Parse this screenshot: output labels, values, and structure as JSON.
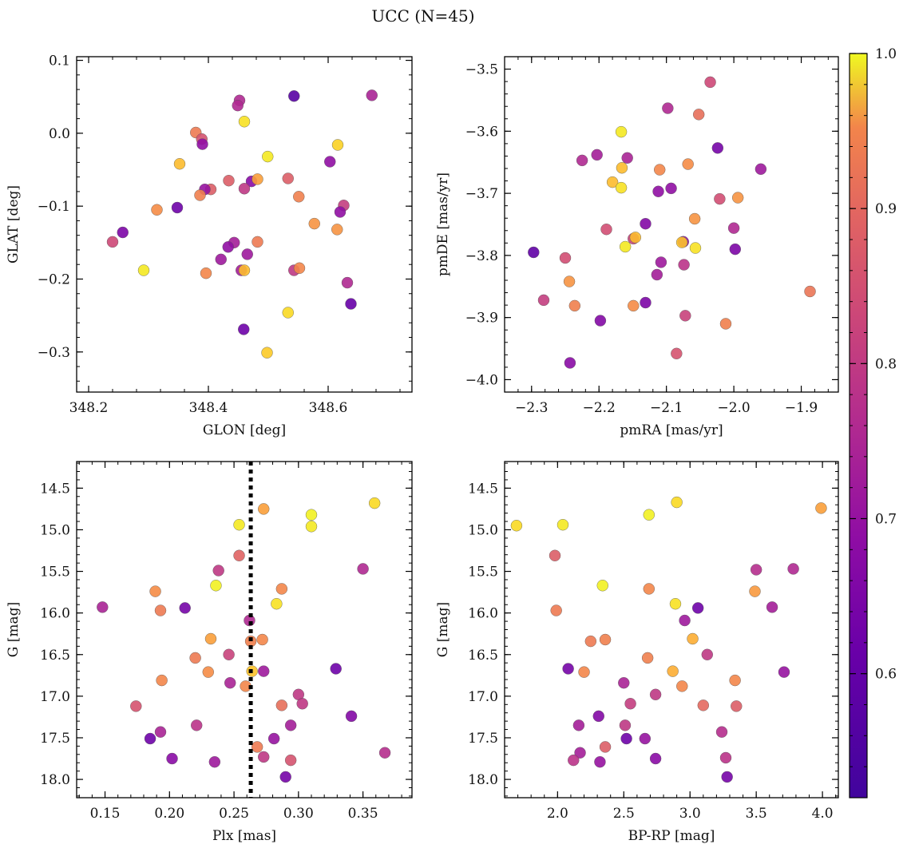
{
  "title": "UCC (N=45)",
  "colorbar": {
    "range": [
      0.52,
      1.0
    ],
    "ticks": [
      0.6,
      0.7,
      0.8,
      0.9,
      1.0
    ],
    "tick_labels": [
      "0.6",
      "0.7",
      "0.8",
      "0.9",
      "1.0"
    ],
    "colormap": "plasma"
  },
  "chart_data": [
    {
      "type": "scatter",
      "xlabel": "GLON [deg]",
      "ylabel": "GLAT [deg]",
      "xlim": [
        348.18,
        348.74
      ],
      "ylim": [
        -0.355,
        0.105
      ],
      "xticks": [
        348.2,
        348.4,
        348.6
      ],
      "xtick_labels": [
        "348.2",
        "348.4",
        "348.6"
      ],
      "yticks": [
        0.1,
        0.0,
        -0.1,
        -0.2,
        -0.3
      ],
      "ytick_labels": [
        "0.1",
        "0.0",
        "−0.1",
        "−0.2",
        "−0.3"
      ],
      "points": [
        {
          "x": 348.543,
          "y": 0.051,
          "c": 0.54
        },
        {
          "x": 348.673,
          "y": 0.052,
          "c": 0.66
        },
        {
          "x": 348.452,
          "y": 0.045,
          "c": 0.67
        },
        {
          "x": 348.449,
          "y": 0.038,
          "c": 0.67
        },
        {
          "x": 348.46,
          "y": 0.016,
          "c": 0.97
        },
        {
          "x": 348.379,
          "y": 0.001,
          "c": 0.82
        },
        {
          "x": 348.389,
          "y": -0.008,
          "c": 0.75
        },
        {
          "x": 348.39,
          "y": -0.015,
          "c": 0.62
        },
        {
          "x": 348.616,
          "y": -0.016,
          "c": 0.95
        },
        {
          "x": 348.499,
          "y": -0.032,
          "c": 0.98
        },
        {
          "x": 348.352,
          "y": -0.042,
          "c": 0.92
        },
        {
          "x": 348.603,
          "y": -0.039,
          "c": 0.62
        },
        {
          "x": 348.533,
          "y": -0.062,
          "c": 0.77
        },
        {
          "x": 348.434,
          "y": -0.065,
          "c": 0.77
        },
        {
          "x": 348.472,
          "y": -0.066,
          "c": 0.61
        },
        {
          "x": 348.482,
          "y": -0.063,
          "c": 0.88
        },
        {
          "x": 348.404,
          "y": -0.077,
          "c": 0.77
        },
        {
          "x": 348.394,
          "y": -0.077,
          "c": 0.63
        },
        {
          "x": 348.46,
          "y": -0.076,
          "c": 0.7
        },
        {
          "x": 348.386,
          "y": -0.085,
          "c": 0.83
        },
        {
          "x": 348.551,
          "y": -0.087,
          "c": 0.83
        },
        {
          "x": 348.626,
          "y": -0.099,
          "c": 0.71
        },
        {
          "x": 348.62,
          "y": -0.108,
          "c": 0.62
        },
        {
          "x": 348.348,
          "y": -0.102,
          "c": 0.57
        },
        {
          "x": 348.314,
          "y": -0.105,
          "c": 0.85
        },
        {
          "x": 348.577,
          "y": -0.124,
          "c": 0.86
        },
        {
          "x": 348.615,
          "y": -0.132,
          "c": 0.86
        },
        {
          "x": 348.257,
          "y": -0.136,
          "c": 0.59
        },
        {
          "x": 348.24,
          "y": -0.149,
          "c": 0.73
        },
        {
          "x": 348.443,
          "y": -0.15,
          "c": 0.65
        },
        {
          "x": 348.482,
          "y": -0.149,
          "c": 0.82
        },
        {
          "x": 348.433,
          "y": -0.156,
          "c": 0.62
        },
        {
          "x": 348.465,
          "y": -0.166,
          "c": 0.64
        },
        {
          "x": 348.421,
          "y": -0.173,
          "c": 0.64
        },
        {
          "x": 348.292,
          "y": -0.188,
          "c": 0.98
        },
        {
          "x": 348.455,
          "y": -0.188,
          "c": 0.65
        },
        {
          "x": 348.46,
          "y": -0.188,
          "c": 0.92
        },
        {
          "x": 348.396,
          "y": -0.192,
          "c": 0.84
        },
        {
          "x": 348.543,
          "y": -0.188,
          "c": 0.7
        },
        {
          "x": 348.552,
          "y": -0.185,
          "c": 0.84
        },
        {
          "x": 348.632,
          "y": -0.205,
          "c": 0.67
        },
        {
          "x": 348.638,
          "y": -0.234,
          "c": 0.56
        },
        {
          "x": 348.533,
          "y": -0.246,
          "c": 0.96
        },
        {
          "x": 348.459,
          "y": -0.269,
          "c": 0.57
        },
        {
          "x": 348.498,
          "y": -0.301,
          "c": 0.94
        }
      ]
    },
    {
      "type": "scatter",
      "xlabel": "pmRA [mas/yr]",
      "ylabel": "pmDE [mas/yr]",
      "xlim": [
        -2.34,
        -1.845
      ],
      "ylim": [
        -4.02,
        -3.48
      ],
      "xticks": [
        -2.3,
        -2.2,
        -2.1,
        -2.0,
        -1.9
      ],
      "xtick_labels": [
        "−2.3",
        "−2.2",
        "−2.1",
        "−2.0",
        "−1.9"
      ],
      "yticks": [
        -3.5,
        -3.6,
        -3.7,
        -3.8,
        -3.9,
        -4.0
      ],
      "ytick_labels": [
        "−3.5",
        "−3.6",
        "−3.7",
        "−3.8",
        "−3.9",
        "−4.0"
      ],
      "points": [
        {
          "x": -2.035,
          "y": -3.521,
          "c": 0.73
        },
        {
          "x": -2.098,
          "y": -3.563,
          "c": 0.67
        },
        {
          "x": -2.052,
          "y": -3.573,
          "c": 0.8
        },
        {
          "x": -2.167,
          "y": -3.601,
          "c": 0.98
        },
        {
          "x": -2.024,
          "y": -3.627,
          "c": 0.58
        },
        {
          "x": -2.203,
          "y": -3.638,
          "c": 0.65
        },
        {
          "x": -2.158,
          "y": -3.643,
          "c": 0.66
        },
        {
          "x": -2.225,
          "y": -3.647,
          "c": 0.67
        },
        {
          "x": -2.166,
          "y": -3.659,
          "c": 0.92
        },
        {
          "x": -2.068,
          "y": -3.653,
          "c": 0.85
        },
        {
          "x": -1.96,
          "y": -3.661,
          "c": 0.64
        },
        {
          "x": -2.11,
          "y": -3.662,
          "c": 0.84
        },
        {
          "x": -2.18,
          "y": -3.682,
          "c": 0.92
        },
        {
          "x": -2.167,
          "y": -3.691,
          "c": 0.97
        },
        {
          "x": -2.112,
          "y": -3.697,
          "c": 0.62
        },
        {
          "x": -2.093,
          "y": -3.692,
          "c": 0.62
        },
        {
          "x": -2.021,
          "y": -3.709,
          "c": 0.74
        },
        {
          "x": -1.994,
          "y": -3.707,
          "c": 0.86
        },
        {
          "x": -2.058,
          "y": -3.741,
          "c": 0.86
        },
        {
          "x": -2.131,
          "y": -3.749,
          "c": 0.6
        },
        {
          "x": -2.189,
          "y": -3.758,
          "c": 0.74
        },
        {
          "x": -2.0,
          "y": -3.756,
          "c": 0.67
        },
        {
          "x": -2.149,
          "y": -3.773,
          "c": 0.72
        },
        {
          "x": -2.146,
          "y": -3.771,
          "c": 0.92
        },
        {
          "x": -2.075,
          "y": -3.778,
          "c": 0.62
        },
        {
          "x": -2.077,
          "y": -3.779,
          "c": 0.93
        },
        {
          "x": -2.161,
          "y": -3.786,
          "c": 0.98
        },
        {
          "x": -2.057,
          "y": -3.788,
          "c": 0.97
        },
        {
          "x": -1.998,
          "y": -3.79,
          "c": 0.59
        },
        {
          "x": -2.297,
          "y": -3.795,
          "c": 0.55
        },
        {
          "x": -2.25,
          "y": -3.804,
          "c": 0.74
        },
        {
          "x": -2.108,
          "y": -3.811,
          "c": 0.64
        },
        {
          "x": -2.074,
          "y": -3.815,
          "c": 0.69
        },
        {
          "x": -2.114,
          "y": -3.831,
          "c": 0.65
        },
        {
          "x": -2.244,
          "y": -3.842,
          "c": 0.86
        },
        {
          "x": -1.887,
          "y": -3.858,
          "c": 0.81
        },
        {
          "x": -2.282,
          "y": -3.872,
          "c": 0.71
        },
        {
          "x": -2.131,
          "y": -3.876,
          "c": 0.59
        },
        {
          "x": -2.236,
          "y": -3.881,
          "c": 0.83
        },
        {
          "x": -2.149,
          "y": -3.881,
          "c": 0.85
        },
        {
          "x": -2.072,
          "y": -3.897,
          "c": 0.72
        },
        {
          "x": -2.198,
          "y": -3.905,
          "c": 0.6
        },
        {
          "x": -2.012,
          "y": -3.91,
          "c": 0.83
        },
        {
          "x": -2.085,
          "y": -3.958,
          "c": 0.75
        },
        {
          "x": -2.243,
          "y": -3.973,
          "c": 0.61
        }
      ]
    },
    {
      "type": "scatter",
      "xlabel": "Plx [mas]",
      "ylabel": "G [mag]",
      "xlim": [
        0.128,
        0.388
      ],
      "ylim": [
        18.22,
        14.18
      ],
      "xticks": [
        0.15,
        0.2,
        0.25,
        0.3,
        0.35
      ],
      "xtick_labels": [
        "0.15",
        "0.20",
        "0.25",
        "0.30",
        "0.35"
      ],
      "yticks": [
        14.5,
        15.0,
        15.5,
        16.0,
        16.5,
        17.0,
        17.5,
        18.0
      ],
      "ytick_labels": [
        "14.5",
        "15.0",
        "15.5",
        "16.0",
        "16.5",
        "17.0",
        "17.5",
        "18.0"
      ],
      "vline": 0.263,
      "points": [
        {
          "x": 0.359,
          "y": 14.68,
          "c": 0.96
        },
        {
          "x": 0.273,
          "y": 14.75,
          "c": 0.88
        },
        {
          "x": 0.31,
          "y": 14.82,
          "c": 0.99
        },
        {
          "x": 0.31,
          "y": 14.96,
          "c": 0.98
        },
        {
          "x": 0.254,
          "y": 14.94,
          "c": 0.98
        },
        {
          "x": 0.254,
          "y": 15.31,
          "c": 0.78
        },
        {
          "x": 0.35,
          "y": 15.47,
          "c": 0.67
        },
        {
          "x": 0.238,
          "y": 15.49,
          "c": 0.7
        },
        {
          "x": 0.236,
          "y": 15.67,
          "c": 0.99
        },
        {
          "x": 0.287,
          "y": 15.71,
          "c": 0.84
        },
        {
          "x": 0.189,
          "y": 15.74,
          "c": 0.85
        },
        {
          "x": 0.283,
          "y": 15.89,
          "c": 0.97
        },
        {
          "x": 0.148,
          "y": 15.93,
          "c": 0.66
        },
        {
          "x": 0.212,
          "y": 15.94,
          "c": 0.58
        },
        {
          "x": 0.193,
          "y": 15.97,
          "c": 0.82
        },
        {
          "x": 0.262,
          "y": 16.09,
          "c": 0.67
        },
        {
          "x": 0.232,
          "y": 16.31,
          "c": 0.88
        },
        {
          "x": 0.272,
          "y": 16.32,
          "c": 0.84
        },
        {
          "x": 0.263,
          "y": 16.34,
          "c": 0.83
        },
        {
          "x": 0.246,
          "y": 16.5,
          "c": 0.72
        },
        {
          "x": 0.22,
          "y": 16.54,
          "c": 0.82
        },
        {
          "x": 0.329,
          "y": 16.67,
          "c": 0.57
        },
        {
          "x": 0.273,
          "y": 16.7,
          "c": 0.64
        },
        {
          "x": 0.264,
          "y": 16.7,
          "c": 0.93
        },
        {
          "x": 0.23,
          "y": 16.71,
          "c": 0.85
        },
        {
          "x": 0.194,
          "y": 16.81,
          "c": 0.84
        },
        {
          "x": 0.247,
          "y": 16.84,
          "c": 0.66
        },
        {
          "x": 0.259,
          "y": 16.88,
          "c": 0.84
        },
        {
          "x": 0.3,
          "y": 16.98,
          "c": 0.7
        },
        {
          "x": 0.174,
          "y": 17.12,
          "c": 0.75
        },
        {
          "x": 0.287,
          "y": 17.11,
          "c": 0.8
        },
        {
          "x": 0.303,
          "y": 17.09,
          "c": 0.7
        },
        {
          "x": 0.341,
          "y": 17.24,
          "c": 0.6
        },
        {
          "x": 0.221,
          "y": 17.35,
          "c": 0.69
        },
        {
          "x": 0.294,
          "y": 17.35,
          "c": 0.65
        },
        {
          "x": 0.193,
          "y": 17.43,
          "c": 0.66
        },
        {
          "x": 0.185,
          "y": 17.51,
          "c": 0.57
        },
        {
          "x": 0.281,
          "y": 17.51,
          "c": 0.63
        },
        {
          "x": 0.268,
          "y": 17.61,
          "c": 0.82
        },
        {
          "x": 0.367,
          "y": 17.68,
          "c": 0.68
        },
        {
          "x": 0.202,
          "y": 17.75,
          "c": 0.61
        },
        {
          "x": 0.273,
          "y": 17.73,
          "c": 0.7
        },
        {
          "x": 0.294,
          "y": 17.77,
          "c": 0.75
        },
        {
          "x": 0.235,
          "y": 17.79,
          "c": 0.64
        },
        {
          "x": 0.29,
          "y": 17.97,
          "c": 0.58
        }
      ]
    },
    {
      "type": "scatter",
      "xlabel": "BP-RP [mag]",
      "ylabel": "G [mag]",
      "xlim": [
        1.6,
        4.12
      ],
      "ylim": [
        18.22,
        14.18
      ],
      "xticks": [
        2.0,
        2.5,
        3.0,
        3.5,
        4.0
      ],
      "xtick_labels": [
        "2.0",
        "2.5",
        "3.0",
        "3.5",
        "4.0"
      ],
      "yticks": [
        14.5,
        15.0,
        15.5,
        16.0,
        16.5,
        17.0,
        17.5,
        18.0
      ],
      "ytick_labels": [
        "14.5",
        "15.0",
        "15.5",
        "16.0",
        "16.5",
        "17.0",
        "17.5",
        "18.0"
      ],
      "points": [
        {
          "x": 3.99,
          "y": 14.74,
          "c": 0.88
        },
        {
          "x": 2.9,
          "y": 14.67,
          "c": 0.96
        },
        {
          "x": 2.69,
          "y": 14.82,
          "c": 0.99
        },
        {
          "x": 1.69,
          "y": 14.95,
          "c": 0.96
        },
        {
          "x": 2.04,
          "y": 14.94,
          "c": 0.98
        },
        {
          "x": 1.98,
          "y": 15.31,
          "c": 0.77
        },
        {
          "x": 3.5,
          "y": 15.48,
          "c": 0.68
        },
        {
          "x": 3.78,
          "y": 15.47,
          "c": 0.67
        },
        {
          "x": 2.34,
          "y": 15.67,
          "c": 0.99
        },
        {
          "x": 2.69,
          "y": 15.71,
          "c": 0.84
        },
        {
          "x": 3.49,
          "y": 15.74,
          "c": 0.87
        },
        {
          "x": 2.89,
          "y": 15.89,
          "c": 0.97
        },
        {
          "x": 3.06,
          "y": 15.94,
          "c": 0.57
        },
        {
          "x": 3.62,
          "y": 15.93,
          "c": 0.65
        },
        {
          "x": 1.99,
          "y": 15.97,
          "c": 0.82
        },
        {
          "x": 2.96,
          "y": 16.09,
          "c": 0.64
        },
        {
          "x": 3.02,
          "y": 16.31,
          "c": 0.9
        },
        {
          "x": 2.25,
          "y": 16.34,
          "c": 0.82
        },
        {
          "x": 2.36,
          "y": 16.32,
          "c": 0.83
        },
        {
          "x": 3.13,
          "y": 16.5,
          "c": 0.7
        },
        {
          "x": 2.68,
          "y": 16.54,
          "c": 0.83
        },
        {
          "x": 2.08,
          "y": 16.67,
          "c": 0.58
        },
        {
          "x": 2.2,
          "y": 16.71,
          "c": 0.84
        },
        {
          "x": 2.87,
          "y": 16.7,
          "c": 0.9
        },
        {
          "x": 3.71,
          "y": 16.71,
          "c": 0.63
        },
        {
          "x": 3.34,
          "y": 16.81,
          "c": 0.84
        },
        {
          "x": 2.5,
          "y": 16.84,
          "c": 0.66
        },
        {
          "x": 2.94,
          "y": 16.88,
          "c": 0.84
        },
        {
          "x": 2.74,
          "y": 16.98,
          "c": 0.7
        },
        {
          "x": 3.1,
          "y": 17.11,
          "c": 0.79
        },
        {
          "x": 3.35,
          "y": 17.12,
          "c": 0.77
        },
        {
          "x": 2.55,
          "y": 17.09,
          "c": 0.71
        },
        {
          "x": 2.31,
          "y": 17.24,
          "c": 0.6
        },
        {
          "x": 2.16,
          "y": 17.35,
          "c": 0.65
        },
        {
          "x": 2.51,
          "y": 17.35,
          "c": 0.7
        },
        {
          "x": 3.24,
          "y": 17.43,
          "c": 0.68
        },
        {
          "x": 2.52,
          "y": 17.51,
          "c": 0.57
        },
        {
          "x": 2.66,
          "y": 17.51,
          "c": 0.63
        },
        {
          "x": 2.36,
          "y": 17.61,
          "c": 0.77
        },
        {
          "x": 2.17,
          "y": 17.68,
          "c": 0.65
        },
        {
          "x": 2.12,
          "y": 17.77,
          "c": 0.69
        },
        {
          "x": 2.74,
          "y": 17.75,
          "c": 0.61
        },
        {
          "x": 3.27,
          "y": 17.74,
          "c": 0.69
        },
        {
          "x": 2.32,
          "y": 17.79,
          "c": 0.63
        },
        {
          "x": 3.28,
          "y": 17.97,
          "c": 0.58
        }
      ]
    }
  ]
}
